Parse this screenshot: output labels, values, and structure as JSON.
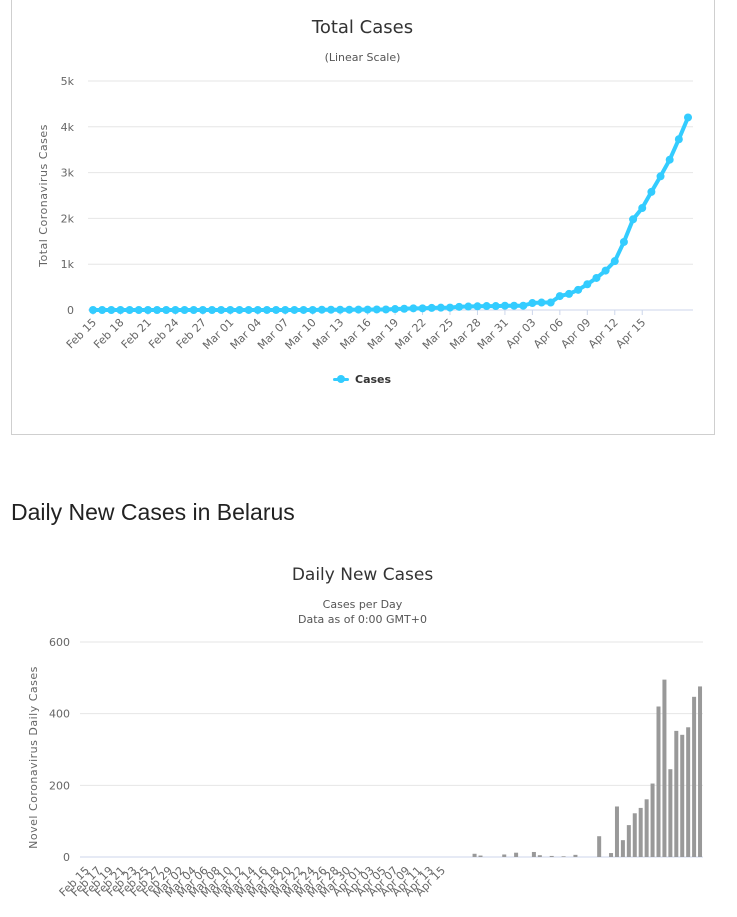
{
  "chart_data": [
    {
      "type": "line",
      "title": "Total Cases",
      "subtitle": "(Linear Scale)",
      "xlabel": "",
      "ylabel": "Total Coronavirus Cases",
      "ylim": [
        0,
        5000
      ],
      "y_ticks": [
        0,
        1000,
        2000,
        3000,
        4000,
        5000
      ],
      "y_tick_labels": [
        "0",
        "1k",
        "2k",
        "3k",
        "4k",
        "5k"
      ],
      "x_tick_labels": [
        "Feb 15",
        "Feb 18",
        "Feb 21",
        "Feb 24",
        "Feb 27",
        "Mar 01",
        "Mar 04",
        "Mar 07",
        "Mar 10",
        "Mar 13",
        "Mar 16",
        "Mar 19",
        "Mar 22",
        "Mar 25",
        "Mar 28",
        "Mar 31",
        "Apr 03",
        "Apr 06",
        "Apr 09",
        "Apr 12",
        "Apr 15"
      ],
      "x_tick_every": 3,
      "color": "#33ccff",
      "grid": true,
      "legend_position": "bottom-center",
      "series": [
        {
          "name": "Cases",
          "x_start": "Feb 15",
          "values": [
            0,
            0,
            0,
            0,
            0,
            0,
            0,
            0,
            0,
            0,
            0,
            0,
            0,
            0,
            1,
            1,
            1,
            1,
            1,
            1,
            1,
            1,
            1,
            1,
            1,
            6,
            6,
            6,
            6,
            9,
            9,
            12,
            12,
            21,
            27,
            36,
            36,
            46,
            51,
            53,
            69,
            76,
            81,
            86,
            86,
            94,
            94,
            94,
            152,
            163,
            163,
            304,
            351,
            440,
            562,
            700,
            861,
            1066,
            1486,
            1981,
            2226,
            2578,
            2919,
            3281,
            3728,
            4204
          ]
        }
      ]
    },
    {
      "type": "bar",
      "title": "Daily New Cases",
      "subtitle": "Cases per Day",
      "subtitle2": "Data as of 0:00 GMT+0",
      "xlabel": "",
      "ylabel": "Novel Coronavirus Daily Cases",
      "ylim": [
        0,
        600
      ],
      "y_ticks": [
        0,
        200,
        400,
        600
      ],
      "x_tick_labels": [
        "Feb 15",
        "Feb 17",
        "Feb 19",
        "Feb 21",
        "Feb 23",
        "Feb 25",
        "Feb 27",
        "Feb 29",
        "Mar 02",
        "Mar 04",
        "Mar 06",
        "Mar 08",
        "Mar 10",
        "Mar 12",
        "Mar 14",
        "Mar 16",
        "Mar 18",
        "Mar 20",
        "Mar 22",
        "Mar 24",
        "Mar 26",
        "Mar 28",
        "Mar 30",
        "Apr 01",
        "Apr 03",
        "Apr 05",
        "Apr 07",
        "Apr 09",
        "Apr 11",
        "Apr 13",
        "Apr 15"
      ],
      "x_tick_every": 2,
      "color": "#999999",
      "grid": true,
      "series": [
        {
          "name": "",
          "x_start": "Feb 15",
          "values": [
            0,
            0,
            0,
            0,
            0,
            0,
            0,
            0,
            0,
            0,
            0,
            0,
            0,
            0,
            0,
            0,
            0,
            0,
            0,
            0,
            0,
            0,
            0,
            0,
            0,
            0,
            0,
            0,
            0,
            0,
            0,
            0,
            0,
            0,
            0,
            0,
            0,
            0,
            0,
            0,
            0,
            0,
            0,
            0,
            0,
            0,
            0,
            0,
            0,
            0,
            0,
            0,
            0,
            0,
            0,
            0,
            0,
            0,
            0,
            0,
            0,
            0,
            0,
            0,
            0,
            0,
            9,
            4,
            0,
            0,
            0,
            7,
            0,
            12,
            0,
            0,
            14,
            5,
            0,
            3,
            0,
            2,
            0,
            6,
            0,
            0,
            0,
            58,
            0,
            11,
            141,
            47,
            89,
            122,
            137,
            161,
            205,
            420,
            495,
            245,
            352,
            341,
            362,
            447,
            476
          ]
        }
      ]
    }
  ],
  "section_heading": "Daily New Cases in Belarus"
}
